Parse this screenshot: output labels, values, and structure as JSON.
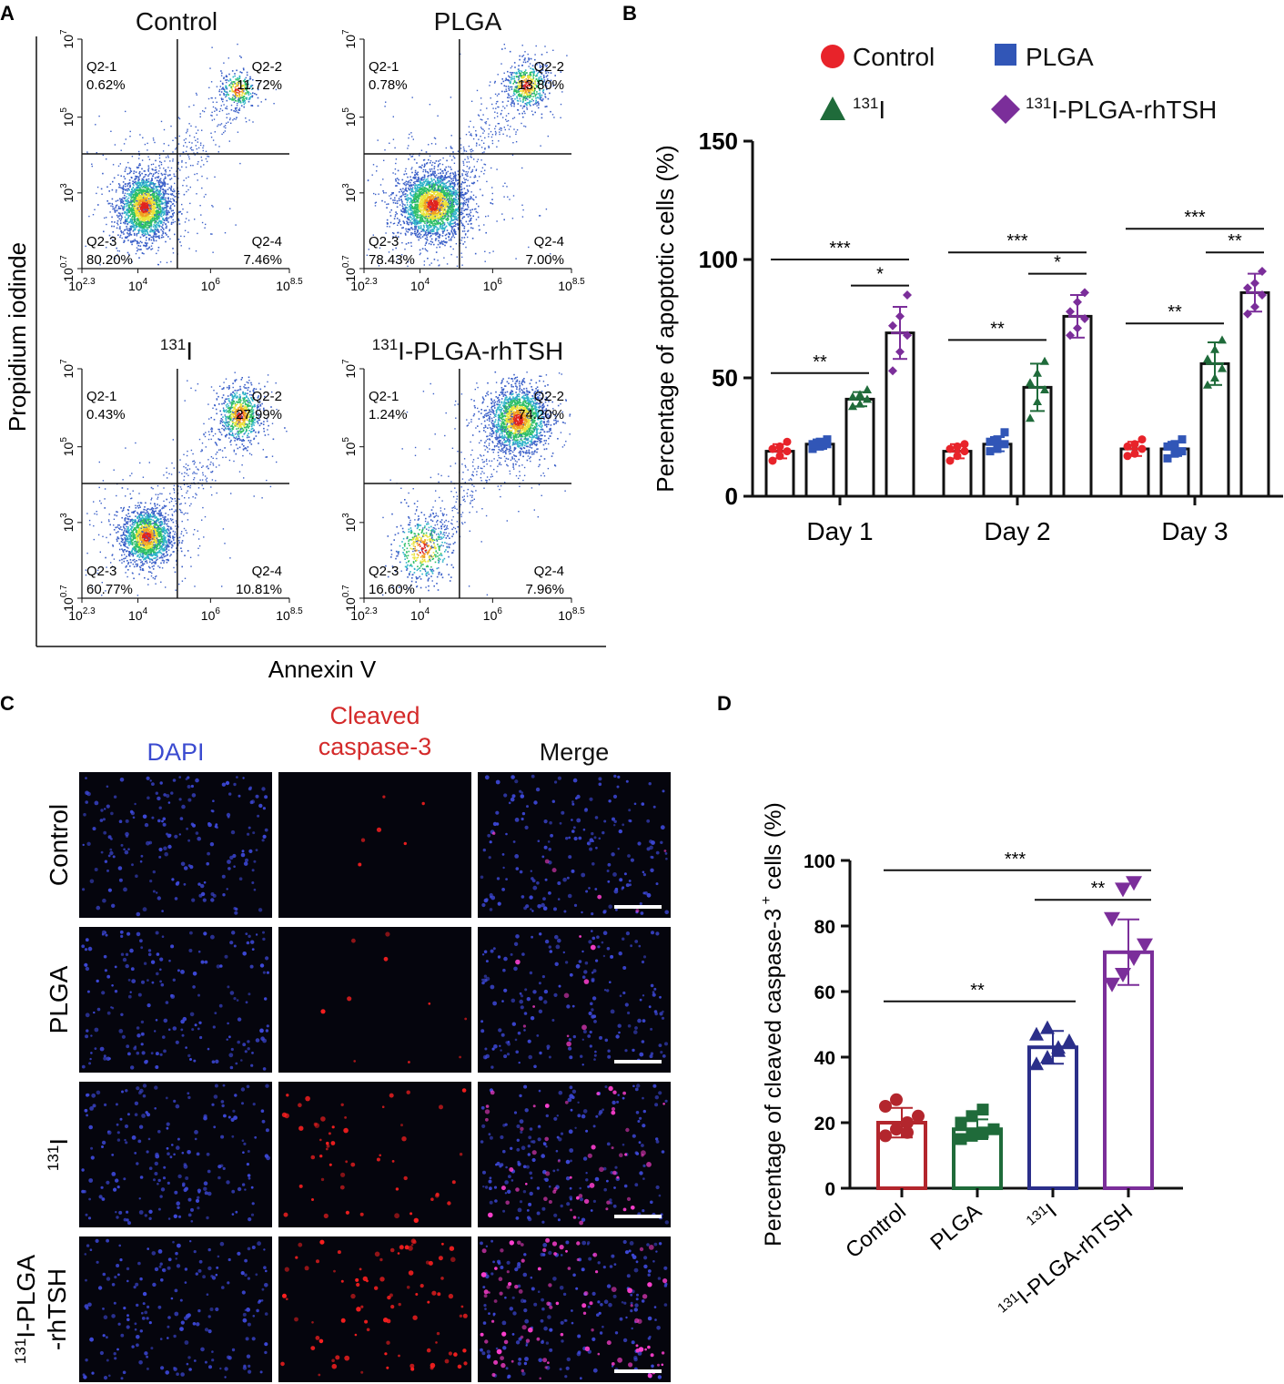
{
  "panel_letters": {
    "a": "A",
    "b": "B",
    "c": "C",
    "d": "D"
  },
  "chart_data": [
    {
      "type": "scatter",
      "name": "panel-a-flow-cytometry",
      "xlabel": "Annexin V",
      "ylabel": "Propidium iodinde",
      "xticks": [
        {
          "base": "10",
          "exp": "2.3"
        },
        {
          "base": "10",
          "exp": "4"
        },
        {
          "base": "10",
          "exp": "6"
        },
        {
          "base": "10",
          "exp": "8.5"
        }
      ],
      "yticks": [
        {
          "base": "10",
          "exp": "0.7"
        },
        {
          "base": "10",
          "exp": "3"
        },
        {
          "base": "10",
          "exp": "5"
        },
        {
          "base": "10",
          "exp": "7"
        }
      ],
      "plots": [
        {
          "title": "Control",
          "sup": "",
          "gate_x": 0.46,
          "gate_y": 0.5,
          "cluster_main": {
            "x": 0.3,
            "y": 0.27,
            "n": 1900,
            "sx": 0.06,
            "sy": 0.07
          },
          "cluster_upper": {
            "x": 0.75,
            "y": 0.78,
            "n": 260,
            "sx": 0.04,
            "sy": 0.04
          },
          "quadrants": [
            {
              "name": "Q2-1",
              "value": "0.62%"
            },
            {
              "name": "Q2-2",
              "value": "11.72%"
            },
            {
              "name": "Q2-3",
              "value": "80.20%"
            },
            {
              "name": "Q2-4",
              "value": "7.46%"
            }
          ]
        },
        {
          "title": "PLGA",
          "sup": "",
          "gate_x": 0.46,
          "gate_y": 0.5,
          "cluster_main": {
            "x": 0.33,
            "y": 0.28,
            "n": 2300,
            "sx": 0.08,
            "sy": 0.07
          },
          "cluster_upper": {
            "x": 0.78,
            "y": 0.8,
            "n": 500,
            "sx": 0.05,
            "sy": 0.05
          },
          "quadrants": [
            {
              "name": "Q2-1",
              "value": "0.78%"
            },
            {
              "name": "Q2-2",
              "value": "13.80%"
            },
            {
              "name": "Q2-3",
              "value": "78.43%"
            },
            {
              "name": "Q2-4",
              "value": "7.00%"
            }
          ]
        },
        {
          "title": "I",
          "sup": "131",
          "gate_x": 0.46,
          "gate_y": 0.5,
          "cluster_main": {
            "x": 0.31,
            "y": 0.27,
            "n": 1500,
            "sx": 0.06,
            "sy": 0.06
          },
          "cluster_upper": {
            "x": 0.76,
            "y": 0.8,
            "n": 700,
            "sx": 0.05,
            "sy": 0.06
          },
          "quadrants": [
            {
              "name": "Q2-1",
              "value": "0.43%"
            },
            {
              "name": "Q2-2",
              "value": "27.99%"
            },
            {
              "name": "Q2-3",
              "value": "60.77%"
            },
            {
              "name": "Q2-4",
              "value": "10.81%"
            }
          ]
        },
        {
          "title": "I-PLGA-rhTSH",
          "sup": "131",
          "gate_x": 0.46,
          "gate_y": 0.5,
          "cluster_main": {
            "x": 0.28,
            "y": 0.22,
            "n": 450,
            "sx": 0.07,
            "sy": 0.07
          },
          "cluster_upper": {
            "x": 0.74,
            "y": 0.78,
            "n": 1800,
            "sx": 0.07,
            "sy": 0.07
          },
          "quadrants": [
            {
              "name": "Q2-1",
              "value": "1.24%"
            },
            {
              "name": "Q2-2",
              "value": "74.20%"
            },
            {
              "name": "Q2-3",
              "value": "16.60%"
            },
            {
              "name": "Q2-4",
              "value": "7.96%"
            }
          ]
        }
      ]
    },
    {
      "type": "bar",
      "name": "panel-b-apoptotic-cells",
      "ylabel": "Percentage of apoptotic cells (%)",
      "ylim": [
        0,
        150
      ],
      "yticks": [
        0,
        50,
        100,
        150
      ],
      "categories": [
        "Day 1",
        "Day 2",
        "Day 3"
      ],
      "legend": [
        {
          "label": "Control",
          "sup": "",
          "color": "#e8232a",
          "marker": "circle"
        },
        {
          "label": "PLGA",
          "sup": "",
          "color": "#3156b7",
          "marker": "square"
        },
        {
          "label": "I",
          "sup": "131",
          "color": "#1f6b3a",
          "marker": "triangle"
        },
        {
          "label": "I-PLGA-rhTSH",
          "sup": "131",
          "color": "#7b2e9a",
          "marker": "diamond"
        }
      ],
      "series": [
        {
          "name": "Control",
          "values": [
            19,
            19,
            20
          ],
          "sd": [
            3,
            3,
            3
          ],
          "points": [
            [
              15,
              17,
              19,
              20,
              21,
              23
            ],
            [
              15,
              17,
              19,
              20,
              21,
              22
            ],
            [
              17,
              18,
              20,
              21,
              22,
              24
            ]
          ]
        },
        {
          "name": "PLGA",
          "values": [
            22,
            22,
            20
          ],
          "sd": [
            2,
            3,
            3
          ],
          "points": [
            [
              20,
              21,
              22,
              22,
              23,
              24
            ],
            [
              19,
              20,
              22,
              23,
              24,
              27
            ],
            [
              16,
              18,
              19,
              21,
              22,
              24
            ]
          ]
        },
        {
          "name": "131I",
          "values": [
            41,
            46,
            56
          ],
          "sd": [
            3,
            10,
            9
          ],
          "points": [
            [
              38,
              39,
              41,
              42,
              43,
              45
            ],
            [
              33,
              40,
              45,
              48,
              52,
              57
            ],
            [
              47,
              50,
              54,
              58,
              62,
              66
            ]
          ]
        },
        {
          "name": "131I-PLGA-rhTSH",
          "values": [
            69,
            76,
            86
          ],
          "sd": [
            11,
            9,
            8
          ],
          "points": [
            [
              53,
              61,
              68,
              72,
              76,
              85
            ],
            [
              68,
              71,
              75,
              78,
              82,
              86
            ],
            [
              77,
              80,
              85,
              88,
              90,
              95
            ]
          ]
        }
      ],
      "significance": [
        {
          "day": 0,
          "from": 0,
          "to": 3,
          "y": 100,
          "label": "***"
        },
        {
          "day": 0,
          "from": 2,
          "to": 3,
          "y": 89,
          "label": "*"
        },
        {
          "day": 0,
          "from": 0,
          "to": 2,
          "y": 52,
          "label": "**"
        },
        {
          "day": 1,
          "from": 0,
          "to": 3,
          "y": 103,
          "label": "***"
        },
        {
          "day": 1,
          "from": 2,
          "to": 3,
          "y": 94,
          "label": "*"
        },
        {
          "day": 1,
          "from": 0,
          "to": 2,
          "y": 66,
          "label": "**"
        },
        {
          "day": 2,
          "from": 0,
          "to": 3,
          "y": 113,
          "label": "***"
        },
        {
          "day": 2,
          "from": 2,
          "to": 3,
          "y": 103,
          "label": "**"
        },
        {
          "day": 2,
          "from": 0,
          "to": 2,
          "y": 73,
          "label": "**"
        }
      ]
    },
    {
      "type": "bar",
      "name": "panel-d-cleaved-caspase",
      "ylabel": "Percentage of cleaved caspase-3",
      "ylabel_sup": "+",
      "ylabel_tail": " cells (%)",
      "ylim": [
        0,
        100
      ],
      "yticks": [
        0,
        20,
        40,
        60,
        80,
        100
      ],
      "categories": [
        {
          "label": "Control",
          "sup": ""
        },
        {
          "label": "PLGA",
          "sup": ""
        },
        {
          "label": "I",
          "sup": "131"
        },
        {
          "label": "I-PLGA-rhTSH",
          "sup": "131"
        }
      ],
      "colors": [
        "#b3262d",
        "#1f6b3a",
        "#2b2f8a",
        "#7b2e9a"
      ],
      "markers": [
        "circle",
        "square",
        "triangle",
        "triangle-down"
      ],
      "values": [
        20,
        18,
        43,
        72
      ],
      "sd": [
        4.5,
        3,
        5,
        10
      ],
      "points": [
        [
          16,
          18,
          20,
          22,
          25,
          27,
          17
        ],
        [
          15,
          16,
          17,
          18,
          20,
          22,
          24
        ],
        [
          38,
          40,
          42,
          45,
          47,
          49,
          43
        ],
        [
          62,
          65,
          70,
          74,
          82,
          91,
          93
        ]
      ],
      "significance": [
        {
          "from": 0,
          "to": 3,
          "y": 97,
          "label": "***"
        },
        {
          "from": 2,
          "to": 3,
          "y": 88,
          "label": "**"
        },
        {
          "from": 0,
          "to": 2,
          "y": 57,
          "label": "**"
        }
      ]
    }
  ],
  "panel_c": {
    "columns": [
      {
        "label": "DAPI",
        "color": "#3b4bd0"
      },
      {
        "label": "Cleaved\ncaspase-3",
        "color": "#d42a2a"
      },
      {
        "label": "Merge",
        "color": "#111111"
      }
    ],
    "rows": [
      {
        "label": "Control",
        "sup": "",
        "caspase_density": 0.05
      },
      {
        "label": "PLGA",
        "sup": "",
        "caspase_density": 0.08
      },
      {
        "label": "I",
        "sup": "131",
        "caspase_density": 0.45
      },
      {
        "label": "I-PLGA\n-rhTSH",
        "sup": "131",
        "caspase_density": 0.75
      }
    ]
  }
}
